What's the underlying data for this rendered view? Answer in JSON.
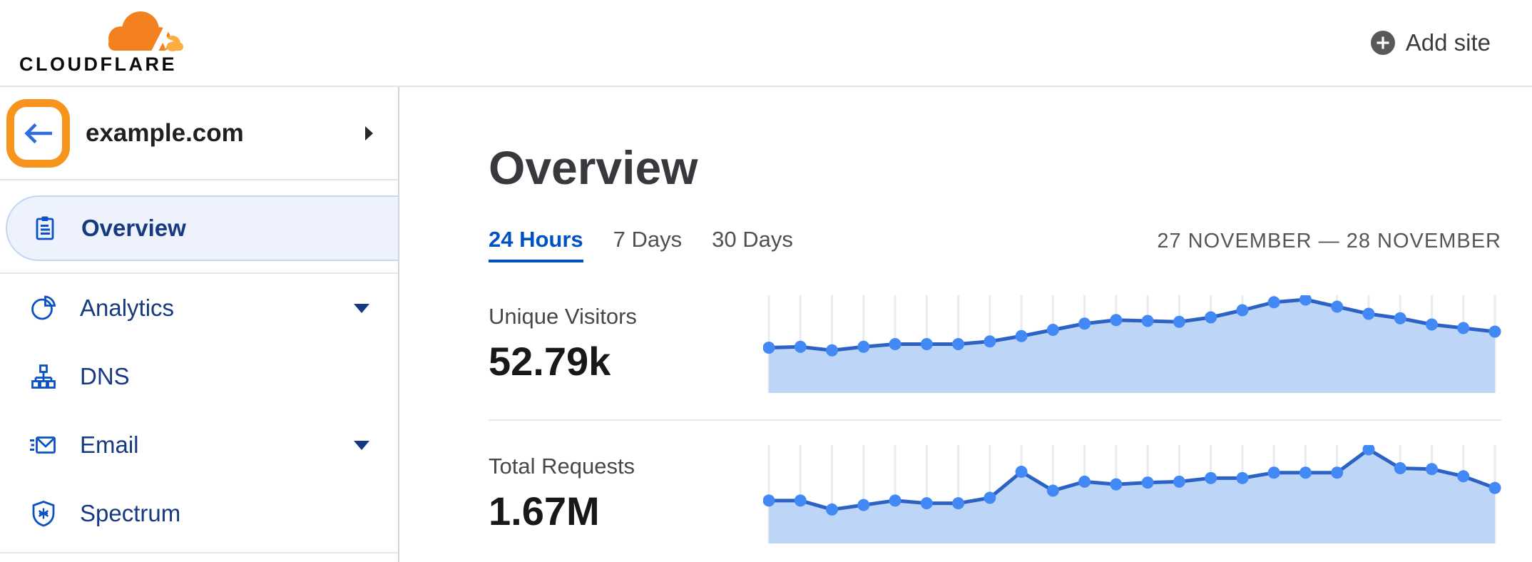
{
  "header": {
    "logo_text": "CLOUDFLARE",
    "add_site_label": "Add site"
  },
  "sidebar": {
    "site": {
      "name": "example.com"
    },
    "items": [
      {
        "label": "Overview",
        "icon": "clipboard-icon",
        "selected": true,
        "expandable": false
      },
      {
        "label": "Analytics",
        "icon": "pie-chart-icon",
        "selected": false,
        "expandable": true
      },
      {
        "label": "DNS",
        "icon": "sitemap-icon",
        "selected": false,
        "expandable": false
      },
      {
        "label": "Email",
        "icon": "envelope-icon",
        "selected": false,
        "expandable": true
      },
      {
        "label": "Spectrum",
        "icon": "shield-icon",
        "selected": false,
        "expandable": false
      }
    ]
  },
  "main": {
    "title": "Overview",
    "tabs": [
      {
        "label": "24 Hours",
        "active": true
      },
      {
        "label": "7 Days",
        "active": false
      },
      {
        "label": "30 Days",
        "active": false
      }
    ],
    "date_range": "27 NOVEMBER — 28 NOVEMBER",
    "metrics": [
      {
        "label": "Unique Visitors",
        "value": "52.79k"
      },
      {
        "label": "Total Requests",
        "value": "1.67M"
      }
    ]
  },
  "colors": {
    "accent_blue": "#0051c3",
    "nav_text": "#16397f",
    "nav_icon": "#0b51c5",
    "selected_bg": "#edf2fc",
    "selected_border": "#c3d7f2",
    "highlight_orange": "#f7941e",
    "brand_orange": "#f48120",
    "brand_orange_light": "#fbad41",
    "chart_line": "#2c62c4",
    "chart_dot": "#4289f5",
    "chart_fill": "#bdd5f6",
    "chart_grid": "#e9ebef"
  },
  "chart_data": [
    {
      "type": "area",
      "title": "Unique Visitors",
      "summary_value": "52.79k",
      "x_axis": "time buckets across 24 Hours (27 November — 28 November), no tick labels shown",
      "y_axis": "unique visitors per bucket (no axis labels shown; values normalized 0-1 to visible peak)",
      "grid": "faint vertical gridline at every data point",
      "legend": false,
      "points": 24,
      "values_normalized": [
        0.46,
        0.47,
        0.43,
        0.47,
        0.5,
        0.5,
        0.5,
        0.53,
        0.59,
        0.66,
        0.73,
        0.77,
        0.76,
        0.75,
        0.8,
        0.88,
        0.97,
        1.0,
        0.92,
        0.84,
        0.79,
        0.72,
        0.68,
        0.64
      ]
    },
    {
      "type": "area",
      "title": "Total Requests",
      "summary_value": "1.67M",
      "x_axis": "time buckets across 24 Hours (27 November — 28 November), no tick labels shown",
      "y_axis": "requests per bucket (no axis labels shown; values normalized 0-1 to visible peak)",
      "grid": "faint vertical gridline at every data point",
      "legend": false,
      "points": 24,
      "values_normalized": [
        0.43,
        0.43,
        0.33,
        0.38,
        0.43,
        0.4,
        0.4,
        0.46,
        0.75,
        0.54,
        0.64,
        0.61,
        0.63,
        0.64,
        0.68,
        0.68,
        0.74,
        0.74,
        0.74,
        1.0,
        0.79,
        0.78,
        0.7,
        0.57
      ]
    }
  ]
}
